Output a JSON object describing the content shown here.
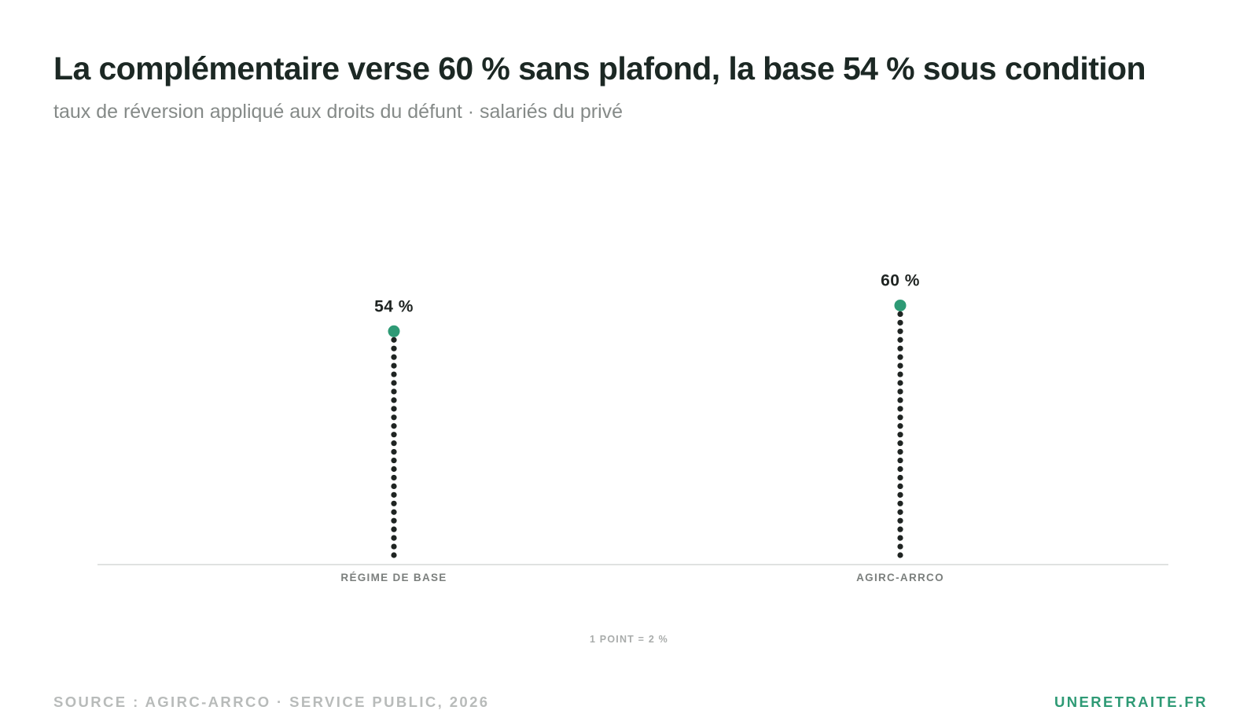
{
  "header": {
    "title": "La complémentaire verse 60 % sans plafond, la base 54 % sous condition",
    "subtitle": "taux de réversion appliqué aux droits du défunt · salariés du privé"
  },
  "footer": {
    "source": "SOURCE : AGIRC-ARRCO · SERVICE PUBLIC, 2026",
    "brand": "UNERETRAITE.FR"
  },
  "legend_note": "1 POINT = 2 %",
  "colors": {
    "accent": "#2e9a75",
    "dots": "#1f2422",
    "baseline": "#d6d8d7"
  },
  "chart_data": {
    "type": "bar",
    "style": "dot-stack lollipop",
    "categories": [
      "RÉGIME DE BASE",
      "AGIRC-ARRCO"
    ],
    "values": [
      54,
      60
    ],
    "value_labels": [
      "54 %",
      "60 %"
    ],
    "unit_per_point": 2,
    "ylim": [
      0,
      60
    ],
    "grid": false
  }
}
